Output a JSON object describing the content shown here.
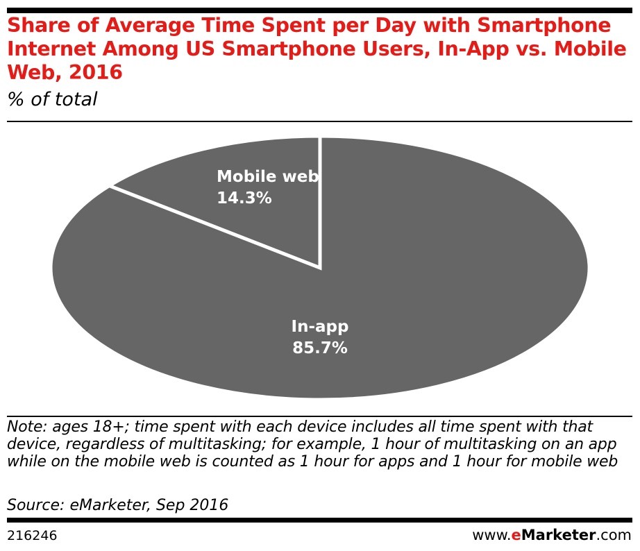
{
  "chart_data": {
    "type": "pie",
    "title": "Share of Average Time Spent per Day with Smartphone Internet Among US Smartphone Users, In-App vs. Mobile Web, 2016",
    "subtitle": "% of total",
    "slices": [
      {
        "label": "Mobile web",
        "value": 14.3,
        "value_label": "14.3%"
      },
      {
        "label": "In-app",
        "value": 85.7,
        "value_label": "85.7%"
      }
    ],
    "colors": {
      "slice_fill": "#666666",
      "separator": "#ffffff",
      "label_text": "#ffffff"
    }
  },
  "footer": {
    "note": "Note: ages 18+; time spent with each device includes all time spent with that device, regardless of multitasking; for example, 1 hour of multitasking on an app while on the mobile web is counted as 1 hour for apps and 1 hour for mobile web",
    "source": "Source: eMarketer, Sep 2016",
    "chart_id": "216246",
    "brand_prefix": "www.",
    "brand_accent": "e",
    "brand_name": "Marketer",
    "brand_suffix": ".com"
  },
  "colors": {
    "title": "#e41b17",
    "rules": "#000000"
  }
}
